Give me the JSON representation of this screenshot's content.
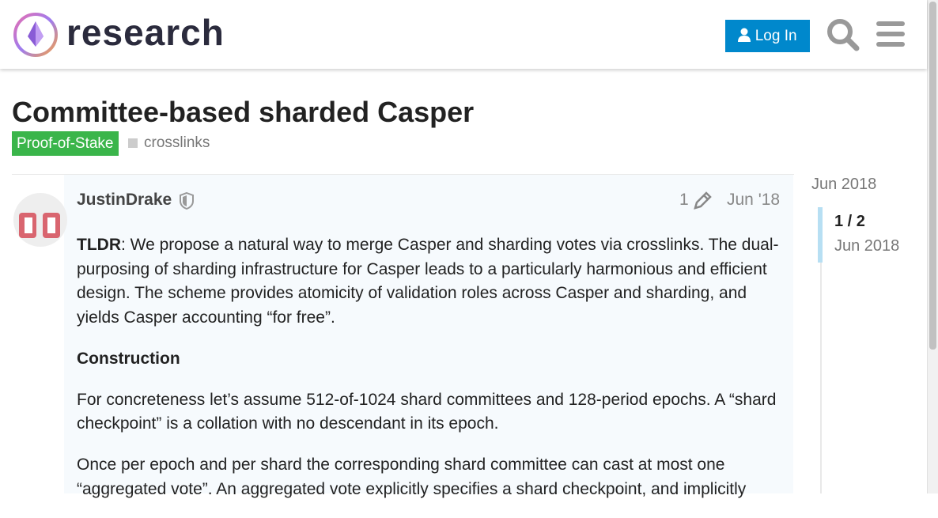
{
  "header": {
    "site_name": "research",
    "login": "Log In"
  },
  "topic": {
    "title": "Committee-based sharded Casper",
    "category": "Proof-of-Stake",
    "tag": "crosslinks"
  },
  "post": {
    "author": "JustinDrake",
    "edits": "1",
    "date": "Jun '18",
    "intro_lead": "TLDR",
    "intro_text": ": We propose a natural way to merge Casper and sharding votes via crosslinks. The dual-purposing of sharding infrastructure for Casper leads to a particularly harmonious and efficient design. The scheme provides atomicity of validation roles across Casper and sharding, and yields Casper accounting “for free”.",
    "heading": "Construction",
    "paragraphs": [
      "For concreteness let’s assume 512-of-1024 shard committees and 128-period epochs. A “shard checkpoint” is a collation with no descendant in its epoch.",
      "Once per epoch and per shard the corresponding shard committee can cast at most one “aggregated vote”. An aggregated vote explicitly specifies a shard checkpoint, and implicitly"
    ]
  },
  "timeline": {
    "start": "Jun 2018",
    "position": "1 / 2",
    "position_date": "Jun 2018"
  }
}
